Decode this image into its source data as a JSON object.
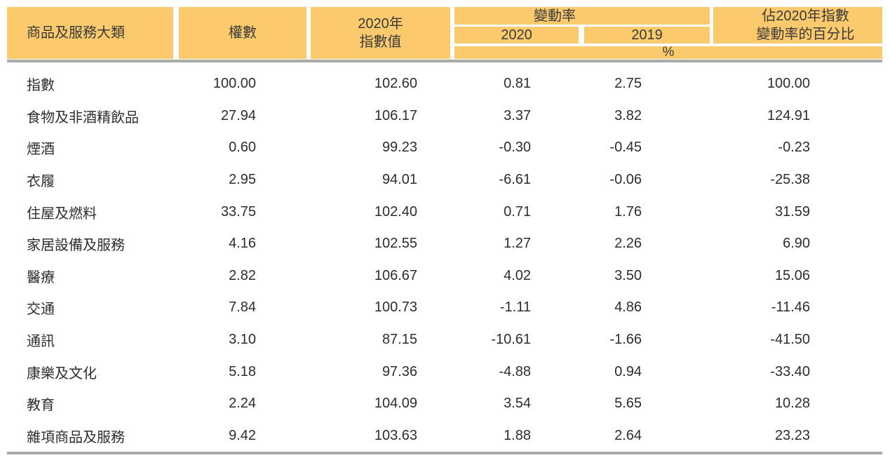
{
  "colors": {
    "header_bg": "#fbca6c",
    "rule_gray": "#aaaaaa",
    "text": "#2d2d2d"
  },
  "chart_data": {
    "type": "table",
    "header": {
      "category": "商品及服務大類",
      "weight": "權數",
      "index_value": [
        "2020年",
        "指數值"
      ],
      "change_rate_group": "變動率",
      "change_years": [
        "2020",
        "2019"
      ],
      "unit": "%",
      "contribution": [
        "佔2020年指數",
        "變動率的百分比"
      ]
    },
    "columns": [
      "商品及服務大類",
      "權數",
      "2020年指數值",
      "變動率 2020 %",
      "變動率 2019 %",
      "佔2020年指數變動率的百分比"
    ],
    "rows": [
      {
        "category": "指數",
        "weight": "100.00",
        "index": "102.60",
        "chg2020": "0.81",
        "chg2019": "2.75",
        "contribution": "100.00"
      },
      {
        "category": "食物及非酒精飲品",
        "weight": "27.94",
        "index": "106.17",
        "chg2020": "3.37",
        "chg2019": "3.82",
        "contribution": "124.91"
      },
      {
        "category": "煙酒",
        "weight": "0.60",
        "index": "99.23",
        "chg2020": "-0.30",
        "chg2019": "-0.45",
        "contribution": "-0.23"
      },
      {
        "category": "衣履",
        "weight": "2.95",
        "index": "94.01",
        "chg2020": "-6.61",
        "chg2019": "-0.06",
        "contribution": "-25.38"
      },
      {
        "category": "住屋及燃料",
        "weight": "33.75",
        "index": "102.40",
        "chg2020": "0.71",
        "chg2019": "1.76",
        "contribution": "31.59"
      },
      {
        "category": "家居設備及服務",
        "weight": "4.16",
        "index": "102.55",
        "chg2020": "1.27",
        "chg2019": "2.26",
        "contribution": "6.90"
      },
      {
        "category": "醫療",
        "weight": "2.82",
        "index": "106.67",
        "chg2020": "4.02",
        "chg2019": "3.50",
        "contribution": "15.06"
      },
      {
        "category": "交通",
        "weight": "7.84",
        "index": "100.73",
        "chg2020": "-1.11",
        "chg2019": "4.86",
        "contribution": "-11.46"
      },
      {
        "category": "通訊",
        "weight": "3.10",
        "index": "87.15",
        "chg2020": "-10.61",
        "chg2019": "-1.66",
        "contribution": "-41.50"
      },
      {
        "category": "康樂及文化",
        "weight": "5.18",
        "index": "97.36",
        "chg2020": "-4.88",
        "chg2019": "0.94",
        "contribution": "-33.40"
      },
      {
        "category": "教育",
        "weight": "2.24",
        "index": "104.09",
        "chg2020": "3.54",
        "chg2019": "5.65",
        "contribution": "10.28"
      },
      {
        "category": "雜項商品及服務",
        "weight": "9.42",
        "index": "103.63",
        "chg2020": "1.88",
        "chg2019": "2.64",
        "contribution": "23.23"
      }
    ]
  }
}
